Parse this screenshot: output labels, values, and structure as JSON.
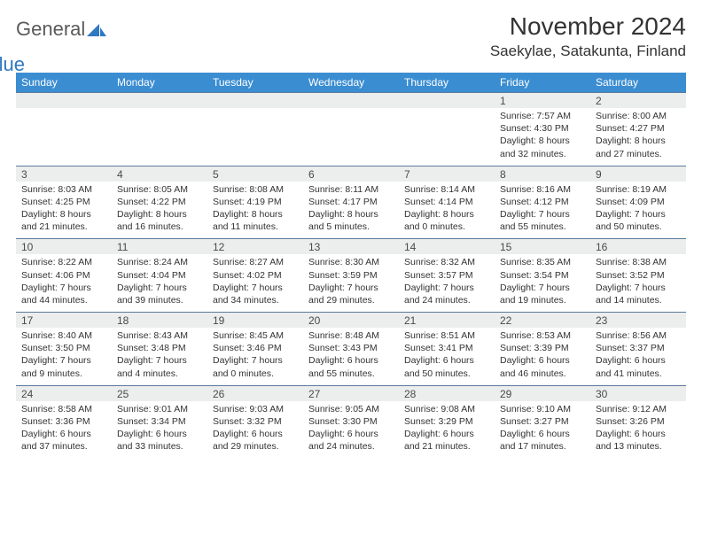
{
  "brand": {
    "general": "General",
    "blue": "Blue"
  },
  "title": "November 2024",
  "location": "Saekylae, Satakunta, Finland",
  "colors": {
    "header_bg": "#3b8dd1",
    "header_text": "#ffffff",
    "daynum_bg": "#eceded",
    "daynum_border": "#5c7a9c",
    "text": "#333333",
    "brand_gray": "#5a5a5a",
    "brand_blue": "#2f78c2",
    "page_bg": "#ffffff"
  },
  "weekdays": [
    "Sunday",
    "Monday",
    "Tuesday",
    "Wednesday",
    "Thursday",
    "Friday",
    "Saturday"
  ],
  "weeks": [
    [
      {
        "n": "",
        "sr": "",
        "ss": "",
        "dl": ""
      },
      {
        "n": "",
        "sr": "",
        "ss": "",
        "dl": ""
      },
      {
        "n": "",
        "sr": "",
        "ss": "",
        "dl": ""
      },
      {
        "n": "",
        "sr": "",
        "ss": "",
        "dl": ""
      },
      {
        "n": "",
        "sr": "",
        "ss": "",
        "dl": ""
      },
      {
        "n": "1",
        "sr": "Sunrise: 7:57 AM",
        "ss": "Sunset: 4:30 PM",
        "dl": "Daylight: 8 hours and 32 minutes."
      },
      {
        "n": "2",
        "sr": "Sunrise: 8:00 AM",
        "ss": "Sunset: 4:27 PM",
        "dl": "Daylight: 8 hours and 27 minutes."
      }
    ],
    [
      {
        "n": "3",
        "sr": "Sunrise: 8:03 AM",
        "ss": "Sunset: 4:25 PM",
        "dl": "Daylight: 8 hours and 21 minutes."
      },
      {
        "n": "4",
        "sr": "Sunrise: 8:05 AM",
        "ss": "Sunset: 4:22 PM",
        "dl": "Daylight: 8 hours and 16 minutes."
      },
      {
        "n": "5",
        "sr": "Sunrise: 8:08 AM",
        "ss": "Sunset: 4:19 PM",
        "dl": "Daylight: 8 hours and 11 minutes."
      },
      {
        "n": "6",
        "sr": "Sunrise: 8:11 AM",
        "ss": "Sunset: 4:17 PM",
        "dl": "Daylight: 8 hours and 5 minutes."
      },
      {
        "n": "7",
        "sr": "Sunrise: 8:14 AM",
        "ss": "Sunset: 4:14 PM",
        "dl": "Daylight: 8 hours and 0 minutes."
      },
      {
        "n": "8",
        "sr": "Sunrise: 8:16 AM",
        "ss": "Sunset: 4:12 PM",
        "dl": "Daylight: 7 hours and 55 minutes."
      },
      {
        "n": "9",
        "sr": "Sunrise: 8:19 AM",
        "ss": "Sunset: 4:09 PM",
        "dl": "Daylight: 7 hours and 50 minutes."
      }
    ],
    [
      {
        "n": "10",
        "sr": "Sunrise: 8:22 AM",
        "ss": "Sunset: 4:06 PM",
        "dl": "Daylight: 7 hours and 44 minutes."
      },
      {
        "n": "11",
        "sr": "Sunrise: 8:24 AM",
        "ss": "Sunset: 4:04 PM",
        "dl": "Daylight: 7 hours and 39 minutes."
      },
      {
        "n": "12",
        "sr": "Sunrise: 8:27 AM",
        "ss": "Sunset: 4:02 PM",
        "dl": "Daylight: 7 hours and 34 minutes."
      },
      {
        "n": "13",
        "sr": "Sunrise: 8:30 AM",
        "ss": "Sunset: 3:59 PM",
        "dl": "Daylight: 7 hours and 29 minutes."
      },
      {
        "n": "14",
        "sr": "Sunrise: 8:32 AM",
        "ss": "Sunset: 3:57 PM",
        "dl": "Daylight: 7 hours and 24 minutes."
      },
      {
        "n": "15",
        "sr": "Sunrise: 8:35 AM",
        "ss": "Sunset: 3:54 PM",
        "dl": "Daylight: 7 hours and 19 minutes."
      },
      {
        "n": "16",
        "sr": "Sunrise: 8:38 AM",
        "ss": "Sunset: 3:52 PM",
        "dl": "Daylight: 7 hours and 14 minutes."
      }
    ],
    [
      {
        "n": "17",
        "sr": "Sunrise: 8:40 AM",
        "ss": "Sunset: 3:50 PM",
        "dl": "Daylight: 7 hours and 9 minutes."
      },
      {
        "n": "18",
        "sr": "Sunrise: 8:43 AM",
        "ss": "Sunset: 3:48 PM",
        "dl": "Daylight: 7 hours and 4 minutes."
      },
      {
        "n": "19",
        "sr": "Sunrise: 8:45 AM",
        "ss": "Sunset: 3:46 PM",
        "dl": "Daylight: 7 hours and 0 minutes."
      },
      {
        "n": "20",
        "sr": "Sunrise: 8:48 AM",
        "ss": "Sunset: 3:43 PM",
        "dl": "Daylight: 6 hours and 55 minutes."
      },
      {
        "n": "21",
        "sr": "Sunrise: 8:51 AM",
        "ss": "Sunset: 3:41 PM",
        "dl": "Daylight: 6 hours and 50 minutes."
      },
      {
        "n": "22",
        "sr": "Sunrise: 8:53 AM",
        "ss": "Sunset: 3:39 PM",
        "dl": "Daylight: 6 hours and 46 minutes."
      },
      {
        "n": "23",
        "sr": "Sunrise: 8:56 AM",
        "ss": "Sunset: 3:37 PM",
        "dl": "Daylight: 6 hours and 41 minutes."
      }
    ],
    [
      {
        "n": "24",
        "sr": "Sunrise: 8:58 AM",
        "ss": "Sunset: 3:36 PM",
        "dl": "Daylight: 6 hours and 37 minutes."
      },
      {
        "n": "25",
        "sr": "Sunrise: 9:01 AM",
        "ss": "Sunset: 3:34 PM",
        "dl": "Daylight: 6 hours and 33 minutes."
      },
      {
        "n": "26",
        "sr": "Sunrise: 9:03 AM",
        "ss": "Sunset: 3:32 PM",
        "dl": "Daylight: 6 hours and 29 minutes."
      },
      {
        "n": "27",
        "sr": "Sunrise: 9:05 AM",
        "ss": "Sunset: 3:30 PM",
        "dl": "Daylight: 6 hours and 24 minutes."
      },
      {
        "n": "28",
        "sr": "Sunrise: 9:08 AM",
        "ss": "Sunset: 3:29 PM",
        "dl": "Daylight: 6 hours and 21 minutes."
      },
      {
        "n": "29",
        "sr": "Sunrise: 9:10 AM",
        "ss": "Sunset: 3:27 PM",
        "dl": "Daylight: 6 hours and 17 minutes."
      },
      {
        "n": "30",
        "sr": "Sunrise: 9:12 AM",
        "ss": "Sunset: 3:26 PM",
        "dl": "Daylight: 6 hours and 13 minutes."
      }
    ]
  ]
}
